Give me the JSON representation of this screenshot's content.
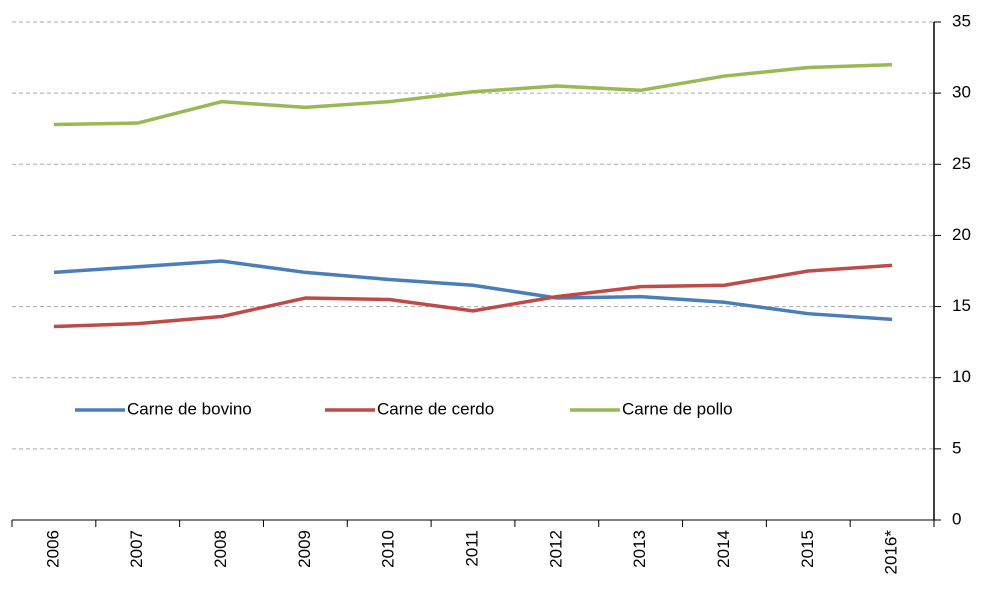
{
  "chart_data": {
    "type": "line",
    "categories": [
      "2006",
      "2007",
      "2008",
      "2009",
      "2010",
      "2011",
      "2012",
      "2013",
      "2014",
      "2015",
      "2016*"
    ],
    "series": [
      {
        "name": "Carne de bovino",
        "color": "#4a7ebb",
        "values": [
          17.4,
          17.8,
          18.2,
          17.4,
          16.9,
          16.5,
          15.6,
          15.7,
          15.3,
          14.5,
          14.1
        ]
      },
      {
        "name": "Carne de cerdo",
        "color": "#be4b48",
        "values": [
          13.6,
          13.8,
          14.3,
          15.6,
          15.5,
          14.7,
          15.7,
          16.4,
          16.5,
          17.5,
          17.9
        ]
      },
      {
        "name": "Carne de pollo",
        "color": "#98b954",
        "values": [
          27.8,
          27.9,
          29.4,
          29.0,
          29.4,
          30.1,
          30.5,
          30.2,
          31.2,
          31.8,
          32.0
        ]
      }
    ],
    "ylim": [
      0,
      35
    ],
    "yticks": [
      0,
      5,
      10,
      15,
      20,
      25,
      30,
      35
    ],
    "grid": true,
    "y_axis_side": "right"
  }
}
